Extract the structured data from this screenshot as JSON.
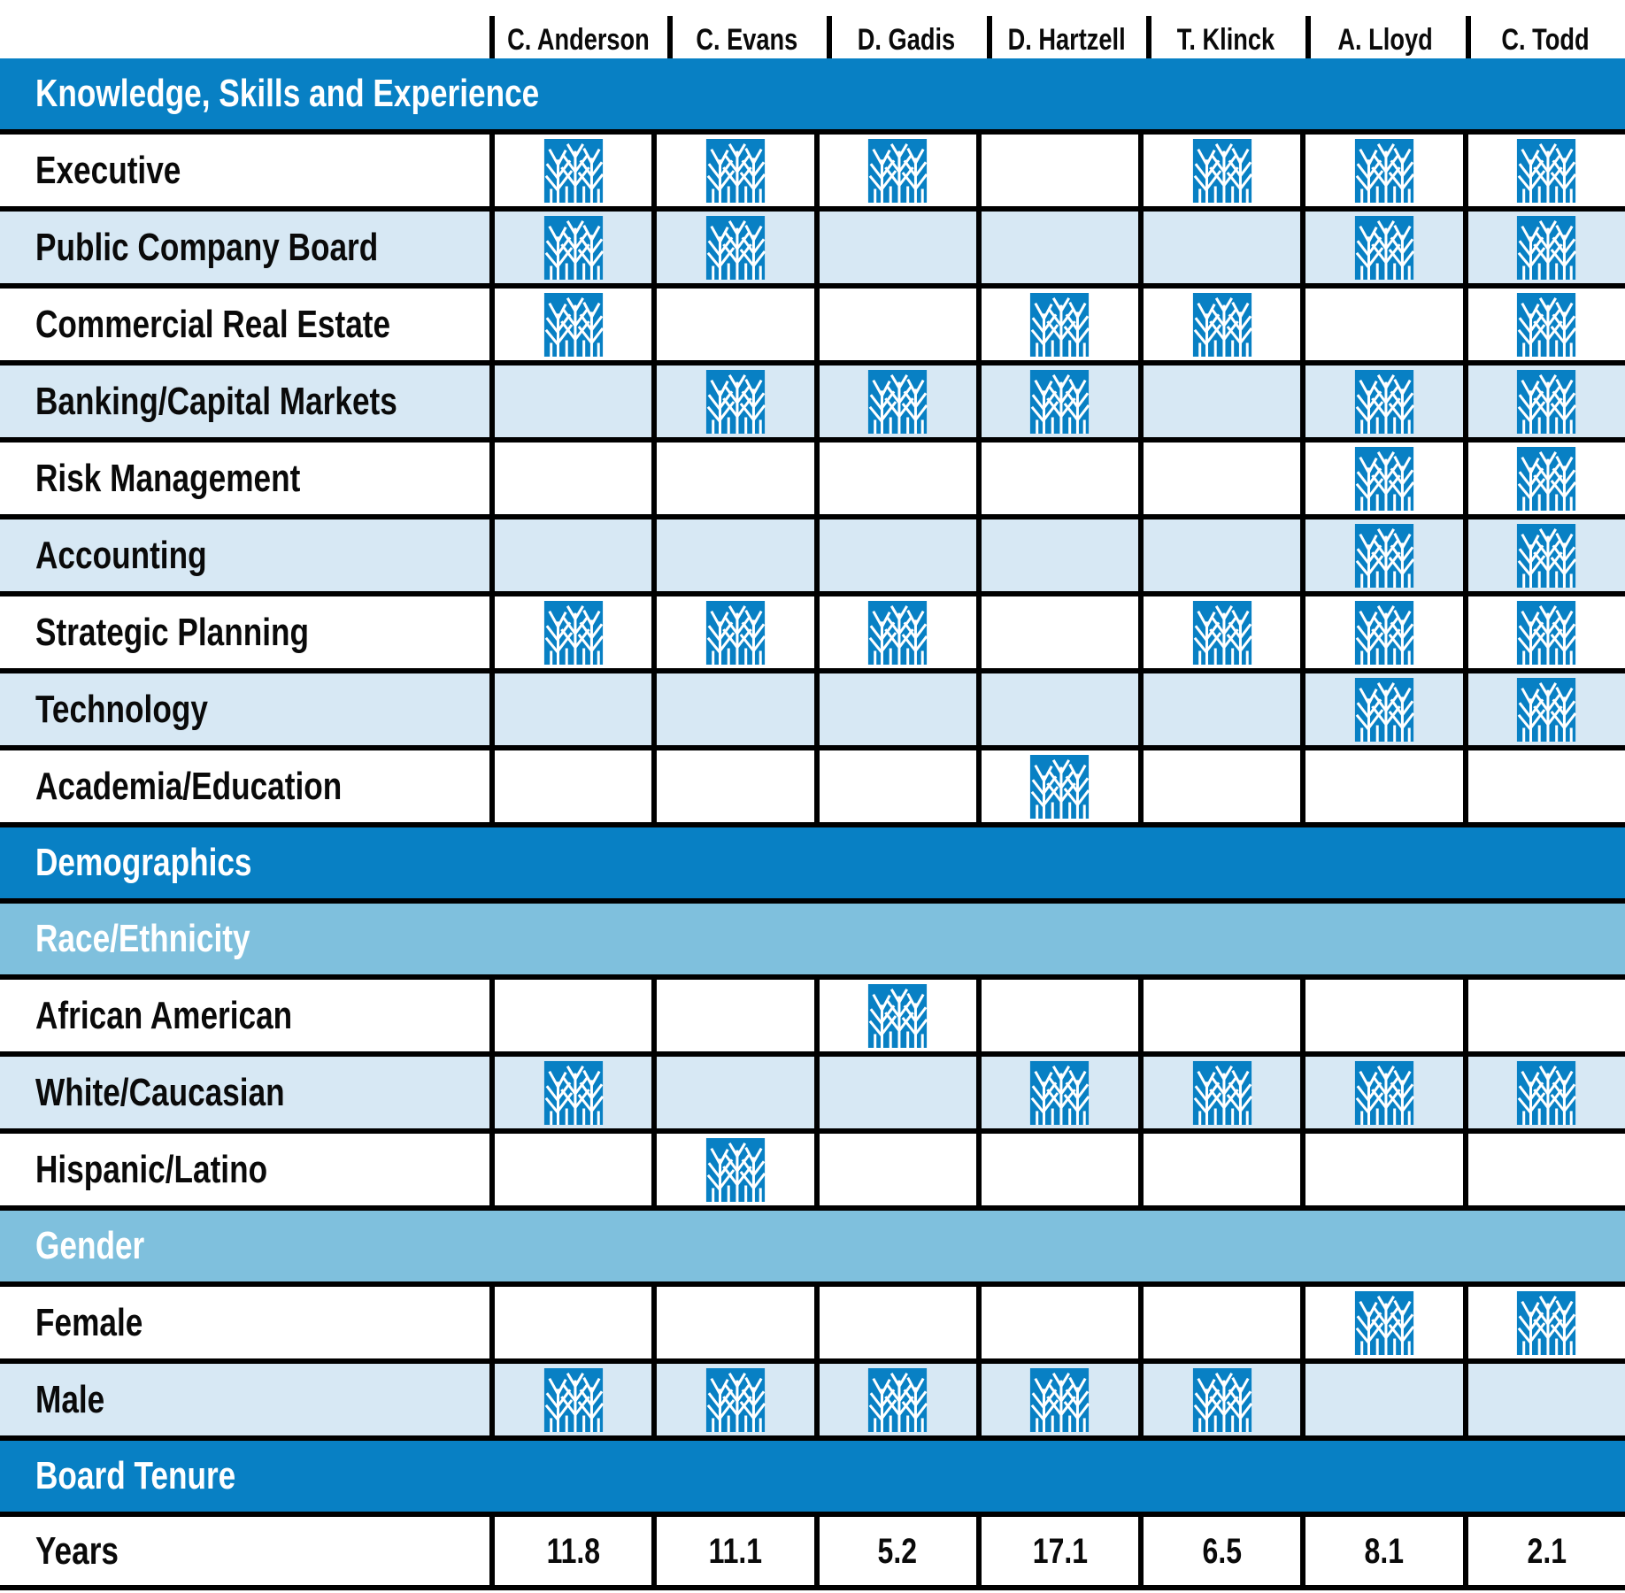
{
  "colors": {
    "dark_blue": "#0880C4",
    "medium_blue": "#7FC0DD",
    "light_blue_row": "#D7E8F4",
    "border_black": "#000000",
    "text_white": "#FFFFFF"
  },
  "header": {
    "columns": [
      "C. Anderson",
      "C. Evans",
      "D. Gadis",
      "D. Hartzell",
      "T. Klinck",
      "A. Lloyd",
      "C. Todd"
    ]
  },
  "icon_legend": {
    "mark_icon": "tree-logo-icon",
    "meaning": "attribute applies to director"
  },
  "body_rows": [
    {
      "kind": "band",
      "style": "dark",
      "label": "Knowledge, Skills and Experience"
    },
    {
      "kind": "data",
      "label": "Executive",
      "marks": [
        1,
        1,
        1,
        0,
        1,
        1,
        1
      ]
    },
    {
      "kind": "data",
      "label": "Public Company Board",
      "marks": [
        1,
        1,
        0,
        0,
        0,
        1,
        1
      ]
    },
    {
      "kind": "data",
      "label": "Commercial Real Estate",
      "marks": [
        1,
        0,
        0,
        1,
        1,
        0,
        1
      ]
    },
    {
      "kind": "data",
      "label": "Banking/Capital Markets",
      "marks": [
        0,
        1,
        1,
        1,
        0,
        1,
        1
      ]
    },
    {
      "kind": "data",
      "label": "Risk Management",
      "marks": [
        0,
        0,
        0,
        0,
        0,
        1,
        1
      ]
    },
    {
      "kind": "data",
      "label": "Accounting",
      "marks": [
        0,
        0,
        0,
        0,
        0,
        1,
        1
      ]
    },
    {
      "kind": "data",
      "label": "Strategic Planning",
      "marks": [
        1,
        1,
        1,
        0,
        1,
        1,
        1
      ]
    },
    {
      "kind": "data",
      "label": "Technology",
      "marks": [
        0,
        0,
        0,
        0,
        0,
        1,
        1
      ]
    },
    {
      "kind": "data",
      "label": "Academia/Education",
      "marks": [
        0,
        0,
        0,
        1,
        0,
        0,
        0
      ]
    },
    {
      "kind": "band",
      "style": "dark",
      "label": "Demographics"
    },
    {
      "kind": "band",
      "style": "medium",
      "label": "Race/Ethnicity"
    },
    {
      "kind": "data",
      "label": "African American",
      "marks": [
        0,
        0,
        1,
        0,
        0,
        0,
        0
      ]
    },
    {
      "kind": "data",
      "label": "White/Caucasian",
      "marks": [
        1,
        0,
        0,
        1,
        1,
        1,
        1
      ]
    },
    {
      "kind": "data",
      "label": "Hispanic/Latino",
      "marks": [
        0,
        1,
        0,
        0,
        0,
        0,
        0
      ]
    },
    {
      "kind": "band",
      "style": "medium",
      "label": "Gender"
    },
    {
      "kind": "data",
      "label": "Female",
      "marks": [
        0,
        0,
        0,
        0,
        0,
        1,
        1
      ]
    },
    {
      "kind": "data",
      "label": "Male",
      "marks": [
        1,
        1,
        1,
        1,
        1,
        0,
        0
      ]
    },
    {
      "kind": "band",
      "style": "dark",
      "label": "Board Tenure"
    },
    {
      "kind": "values",
      "label": "Years",
      "values": [
        "11.8",
        "11.1",
        "5.2",
        "17.1",
        "6.5",
        "8.1",
        "2.1"
      ]
    }
  ]
}
